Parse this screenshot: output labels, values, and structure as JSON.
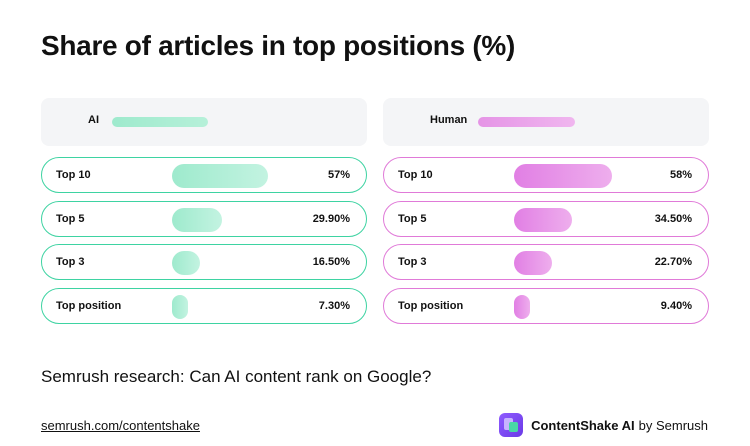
{
  "title": "Share of articles in top positions (%)",
  "subtitle": "Semrush research: Can AI content rank on Google?",
  "footer": {
    "link": "semrush.com/contentshake",
    "brand_name": "ContentShake AI",
    "brand_suffix": "by Semrush",
    "brand_icon": "contentshake-logo-icon"
  },
  "colors": {
    "ai_accent": "#3ed3a2",
    "ai_bar": "#9eeacd",
    "human_accent": "#e07ad8",
    "human_bar": "#e594e6"
  },
  "chart_data": {
    "type": "bar",
    "orientation": "horizontal",
    "title": "Share of articles in top positions (%)",
    "categories": [
      "Top 10",
      "Top 5",
      "Top 3",
      "Top position"
    ],
    "series": [
      {
        "name": "AI",
        "values": [
          57,
          29.9,
          16.5,
          7.3
        ],
        "labels": [
          "57%",
          "29.90%",
          "16.50%",
          "7.30%"
        ]
      },
      {
        "name": "Human",
        "values": [
          58,
          34.5,
          22.7,
          9.4
        ],
        "labels": [
          "58%",
          "34.50%",
          "22.70%",
          "9.40%"
        ]
      }
    ],
    "xlim": [
      0,
      100
    ],
    "grid": false,
    "legend": "top"
  }
}
